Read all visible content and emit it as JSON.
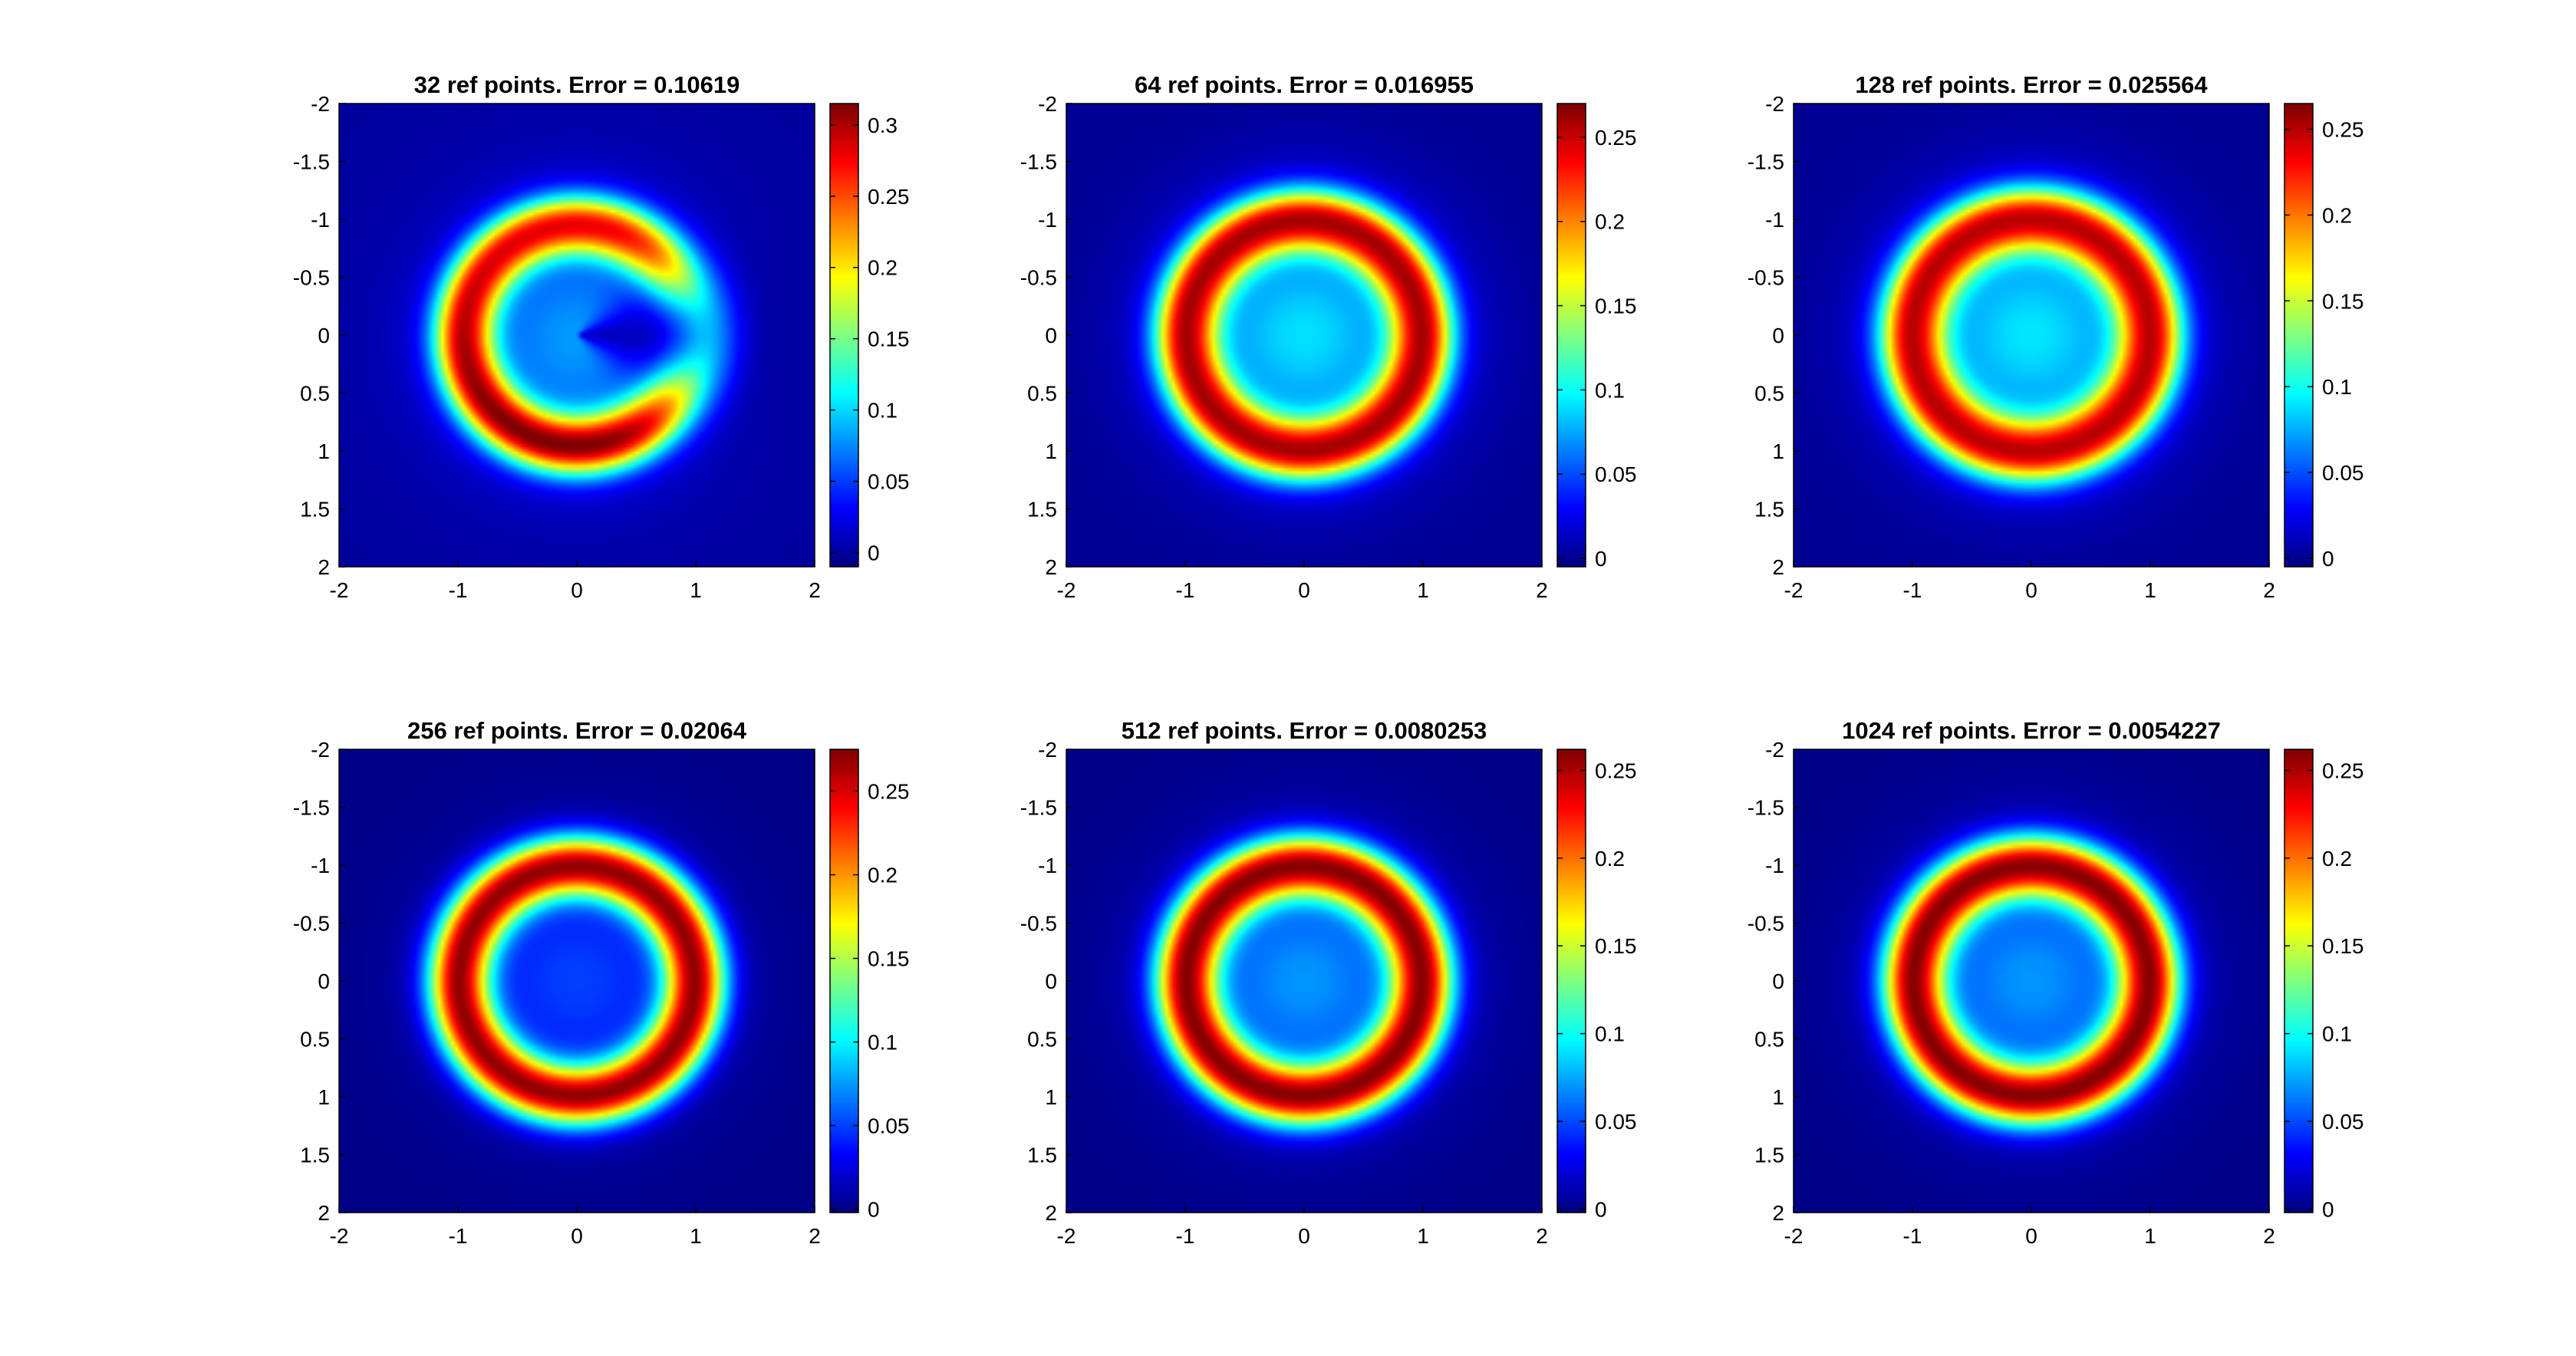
{
  "chart_data": [
    {
      "type": "heatmap",
      "title": "32 ref points. Error = 0.10619",
      "xticks": [
        "-2",
        "-1",
        "0",
        "1",
        "2"
      ],
      "yticks": [
        "-2",
        "-1.5",
        "-1",
        "-0.5",
        "0",
        "0.5",
        "1",
        "1.5",
        "2"
      ],
      "xlim": [
        -2,
        2
      ],
      "ylim": [
        -2,
        2
      ],
      "y_axis_direction": "reverse",
      "colorbar_ticks": [
        "0",
        "0.05",
        "0.1",
        "0.15",
        "0.2",
        "0.25",
        "0.3"
      ],
      "clim": [
        -0.01,
        0.315
      ],
      "colormap": "jet",
      "field": {
        "shape": "broken-ring",
        "ring_radius": 0.95,
        "ring_width": 0.24,
        "peak": 0.3,
        "center_value": 0.08,
        "gap_direction": "right",
        "gap_span_deg": 38
      }
    },
    {
      "type": "heatmap",
      "title": "64 ref points. Error = 0.016955",
      "xticks": [
        "-2",
        "-1",
        "0",
        "1",
        "2"
      ],
      "yticks": [
        "-2",
        "-1.5",
        "-1",
        "-0.5",
        "0",
        "0.5",
        "1",
        "1.5",
        "2"
      ],
      "xlim": [
        -2,
        2
      ],
      "ylim": [
        -2,
        2
      ],
      "y_axis_direction": "reverse",
      "colorbar_ticks": [
        "0",
        "0.05",
        "0.1",
        "0.15",
        "0.2",
        "0.25"
      ],
      "clim": [
        -0.005,
        0.27
      ],
      "colormap": "jet",
      "field": {
        "shape": "ring",
        "ring_radius": 0.99,
        "ring_width": 0.25,
        "peak": 0.26,
        "center_value": 0.09
      }
    },
    {
      "type": "heatmap",
      "title": "128 ref points. Error = 0.025564",
      "xticks": [
        "-2",
        "-1",
        "0",
        "1",
        "2"
      ],
      "yticks": [
        "-2",
        "-1.5",
        "-1",
        "-0.5",
        "0",
        "0.5",
        "1",
        "1.5",
        "2"
      ],
      "xlim": [
        -2,
        2
      ],
      "ylim": [
        -2,
        2
      ],
      "y_axis_direction": "reverse",
      "colorbar_ticks": [
        "0",
        "0.05",
        "0.1",
        "0.15",
        "0.2",
        "0.25"
      ],
      "clim": [
        -0.005,
        0.265
      ],
      "colormap": "jet",
      "field": {
        "shape": "ring",
        "ring_radius": 1.0,
        "ring_width": 0.26,
        "peak": 0.25,
        "center_value": 0.09
      }
    },
    {
      "type": "heatmap",
      "title": "256 ref points. Error = 0.02064",
      "xticks": [
        "-2",
        "-1",
        "0",
        "1",
        "2"
      ],
      "yticks": [
        "-2",
        "-1.5",
        "-1",
        "-0.5",
        "0",
        "0.5",
        "1",
        "1.5",
        "2"
      ],
      "xlim": [
        -2,
        2
      ],
      "ylim": [
        -2,
        2
      ],
      "y_axis_direction": "reverse",
      "colorbar_ticks": [
        "0",
        "0.05",
        "0.1",
        "0.15",
        "0.2",
        "0.25"
      ],
      "clim": [
        -0.002,
        0.275
      ],
      "colormap": "jet",
      "field": {
        "shape": "ring",
        "ring_radius": 0.99,
        "ring_width": 0.25,
        "peak": 0.27,
        "center_value": 0.05
      }
    },
    {
      "type": "heatmap",
      "title": "512 ref points. Error = 0.0080253",
      "xticks": [
        "-2",
        "-1",
        "0",
        "1",
        "2"
      ],
      "yticks": [
        "-2",
        "-1.5",
        "-1",
        "-0.5",
        "0",
        "0.5",
        "1",
        "1.5",
        "2"
      ],
      "xlim": [
        -2,
        2
      ],
      "ylim": [
        -2,
        2
      ],
      "y_axis_direction": "reverse",
      "colorbar_ticks": [
        "0",
        "0.05",
        "0.1",
        "0.15",
        "0.2",
        "0.25"
      ],
      "clim": [
        -0.002,
        0.262
      ],
      "colormap": "jet",
      "field": {
        "shape": "ring",
        "ring_radius": 0.99,
        "ring_width": 0.25,
        "peak": 0.26,
        "center_value": 0.07
      }
    },
    {
      "type": "heatmap",
      "title": "1024 ref points. Error = 0.0054227",
      "xticks": [
        "-2",
        "-1",
        "0",
        "1",
        "2"
      ],
      "yticks": [
        "-2",
        "-1.5",
        "-1",
        "-0.5",
        "0",
        "0.5",
        "1",
        "1.5",
        "2"
      ],
      "xlim": [
        -2,
        2
      ],
      "ylim": [
        -2,
        2
      ],
      "y_axis_direction": "reverse",
      "colorbar_ticks": [
        "0",
        "0.05",
        "0.1",
        "0.15",
        "0.2",
        "0.25"
      ],
      "clim": [
        -0.002,
        0.262
      ],
      "colormap": "jet",
      "field": {
        "shape": "ring",
        "ring_radius": 0.99,
        "ring_width": 0.25,
        "peak": 0.26,
        "center_value": 0.07
      }
    }
  ]
}
